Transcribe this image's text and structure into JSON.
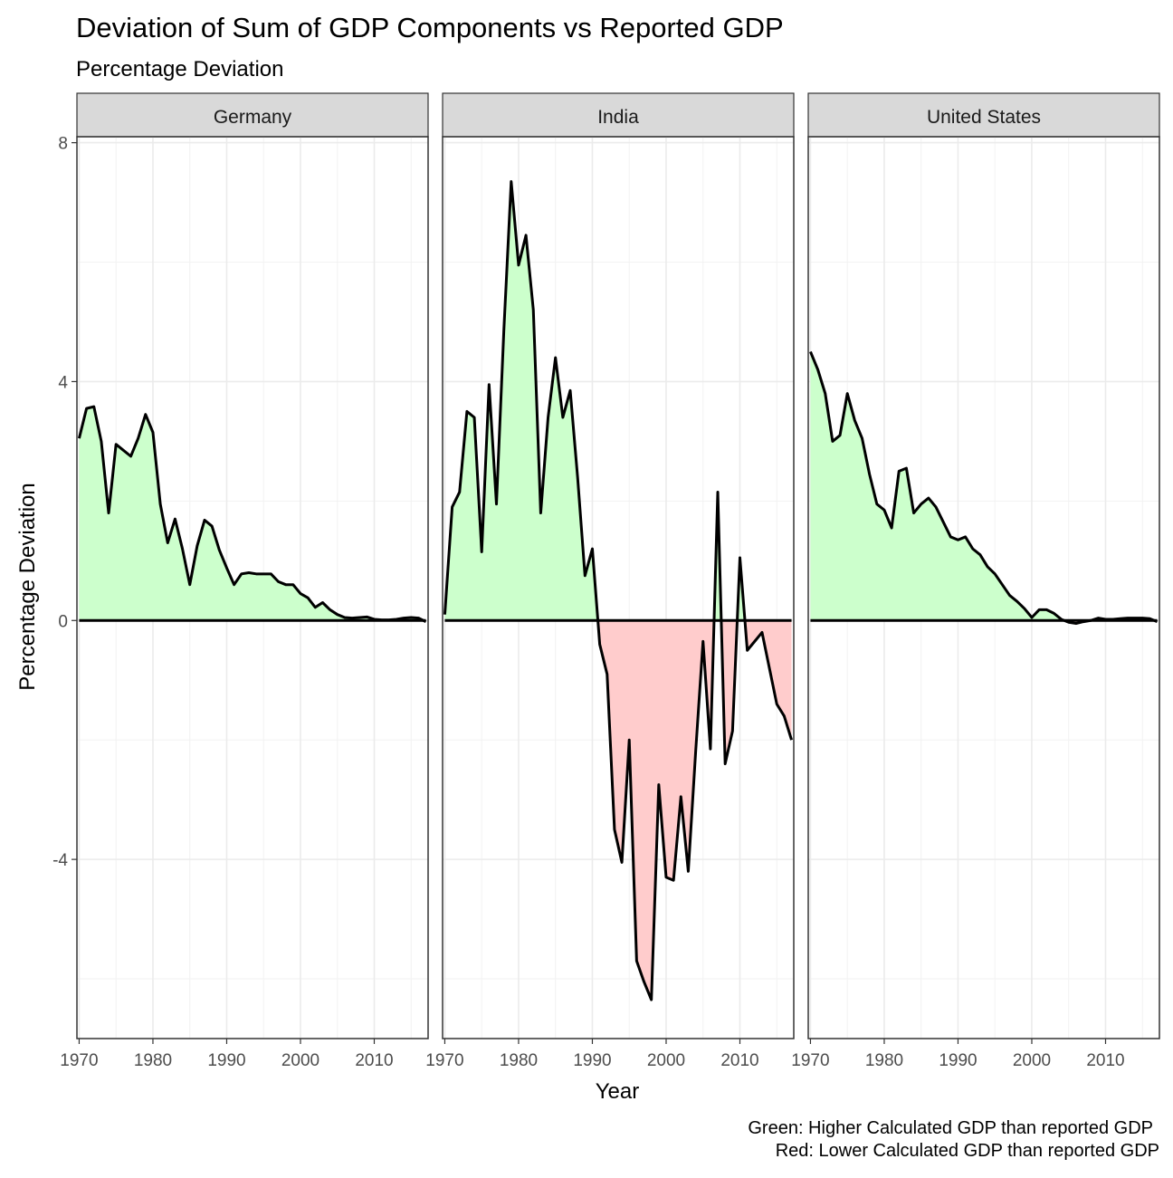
{
  "chart_data": {
    "type": "area",
    "title": "Deviation of Sum of GDP Components vs Reported GDP",
    "subtitle": "Percentage Deviation",
    "xlabel": "Year",
    "ylabel": "Percentage Deviation",
    "caption": [
      "Green: Higher Calculated GDP than reported GDP",
      "Red: Lower Calculated GDP than reported GDP"
    ],
    "xlim": [
      1970,
      2017
    ],
    "ylim": [
      -7,
      8
    ],
    "x_ticks": [
      1970,
      1980,
      1990,
      2000,
      2010
    ],
    "y_ticks": [
      -4,
      0,
      4,
      8
    ],
    "grid": true,
    "colors": {
      "positive_fill": "#ccffcc",
      "negative_fill": "#ffcccc",
      "line": "#000000",
      "strip_bg": "#d9d9d9",
      "grid": "#ebebeb"
    },
    "panels": [
      {
        "name": "Germany",
        "x": [
          1970,
          1971,
          1972,
          1973,
          1974,
          1975,
          1976,
          1977,
          1978,
          1979,
          1980,
          1981,
          1982,
          1983,
          1984,
          1985,
          1986,
          1987,
          1988,
          1989,
          1990,
          1991,
          1992,
          1993,
          1994,
          1995,
          1996,
          1997,
          1998,
          1999,
          2000,
          2001,
          2002,
          2003,
          2004,
          2005,
          2006,
          2007,
          2008,
          2009,
          2010,
          2011,
          2012,
          2013,
          2014,
          2015,
          2016,
          2017
        ],
        "y": [
          3.05,
          3.55,
          3.58,
          3.0,
          1.8,
          2.95,
          2.85,
          2.75,
          3.05,
          3.45,
          3.15,
          1.95,
          1.3,
          1.7,
          1.2,
          0.6,
          1.25,
          1.68,
          1.58,
          1.18,
          0.88,
          0.6,
          0.78,
          0.8,
          0.78,
          0.78,
          0.78,
          0.65,
          0.6,
          0.6,
          0.45,
          0.38,
          0.22,
          0.3,
          0.18,
          0.1,
          0.05,
          0.04,
          0.05,
          0.06,
          0.02,
          0.01,
          0.01,
          0.02,
          0.04,
          0.05,
          0.04,
          -0.02
        ]
      },
      {
        "name": "India",
        "x": [
          1970,
          1971,
          1972,
          1973,
          1974,
          1975,
          1976,
          1977,
          1978,
          1979,
          1980,
          1981,
          1982,
          1983,
          1984,
          1985,
          1986,
          1987,
          1988,
          1989,
          1990,
          1991,
          1992,
          1993,
          1994,
          1995,
          1996,
          1997,
          1998,
          1999,
          2000,
          2001,
          2002,
          2003,
          2004,
          2005,
          2006,
          2007,
          2008,
          2009,
          2010,
          2011,
          2012,
          2013,
          2014,
          2015,
          2016,
          2017
        ],
        "y": [
          0.1,
          1.9,
          2.15,
          3.5,
          3.4,
          1.15,
          3.95,
          1.95,
          4.85,
          7.35,
          5.95,
          6.45,
          5.2,
          1.8,
          3.4,
          4.4,
          3.4,
          3.85,
          2.4,
          0.75,
          1.2,
          -0.4,
          -0.9,
          -3.5,
          -4.05,
          -2.0,
          -5.7,
          -6.05,
          -6.35,
          -2.75,
          -4.3,
          -4.35,
          -2.95,
          -4.2,
          -2.2,
          -0.35,
          -2.15,
          2.15,
          -2.4,
          -1.85,
          1.05,
          -0.5,
          -0.35,
          -0.2,
          -0.8,
          -1.4,
          -1.6,
          -2.0
        ]
      },
      {
        "name": "United States",
        "x": [
          1970,
          1971,
          1972,
          1973,
          1974,
          1975,
          1976,
          1977,
          1978,
          1979,
          1980,
          1981,
          1982,
          1983,
          1984,
          1985,
          1986,
          1987,
          1988,
          1989,
          1990,
          1991,
          1992,
          1993,
          1994,
          1995,
          1996,
          1997,
          1998,
          1999,
          2000,
          2001,
          2002,
          2003,
          2004,
          2005,
          2006,
          2007,
          2008,
          2009,
          2010,
          2011,
          2012,
          2013,
          2014,
          2015,
          2016,
          2017
        ],
        "y": [
          4.5,
          4.2,
          3.8,
          3.0,
          3.1,
          3.8,
          3.35,
          3.05,
          2.45,
          1.95,
          1.85,
          1.55,
          2.5,
          2.55,
          1.8,
          1.95,
          2.05,
          1.9,
          1.65,
          1.4,
          1.35,
          1.4,
          1.2,
          1.1,
          0.9,
          0.78,
          0.6,
          0.42,
          0.32,
          0.2,
          0.05,
          0.18,
          0.18,
          0.12,
          0.02,
          -0.03,
          -0.05,
          -0.02,
          0.0,
          0.04,
          0.02,
          0.02,
          0.03,
          0.04,
          0.04,
          0.04,
          0.03,
          -0.02
        ]
      }
    ]
  }
}
